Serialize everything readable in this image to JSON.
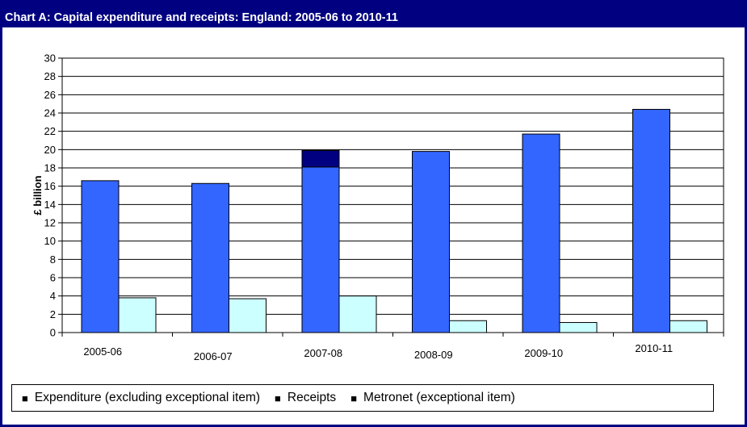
{
  "chart_data": {
    "type": "bar",
    "title": "Chart A: Capital expenditure and receipts: England:  2005-06 to 2010-11",
    "ylabel": "£ billion",
    "xlabel": "",
    "ylim": [
      0,
      30
    ],
    "ytick_step": 2,
    "categories": [
      "2005-06",
      "2006-07",
      "2007-08",
      "2008-09",
      "2009-10",
      "2010-11"
    ],
    "series": [
      {
        "name": "Expenditure (excluding exceptional item)",
        "color": "#3366ff",
        "values": [
          16.6,
          16.3,
          18.1,
          19.8,
          21.7,
          24.4
        ]
      },
      {
        "name": "Metronet (exceptional item)",
        "color": "#000080",
        "stacked_on": "Expenditure (excluding exceptional item)",
        "values": [
          0,
          0,
          1.8,
          0,
          0,
          0
        ]
      },
      {
        "name": "Receipts",
        "color": "#ccffff",
        "values": [
          3.8,
          3.7,
          4.0,
          1.3,
          1.1,
          1.3
        ]
      }
    ],
    "grid": true,
    "legend_position": "bottom",
    "legend_order": [
      "Expenditure (excluding exceptional item)",
      "Receipts",
      "Metronet (exceptional item)"
    ]
  }
}
